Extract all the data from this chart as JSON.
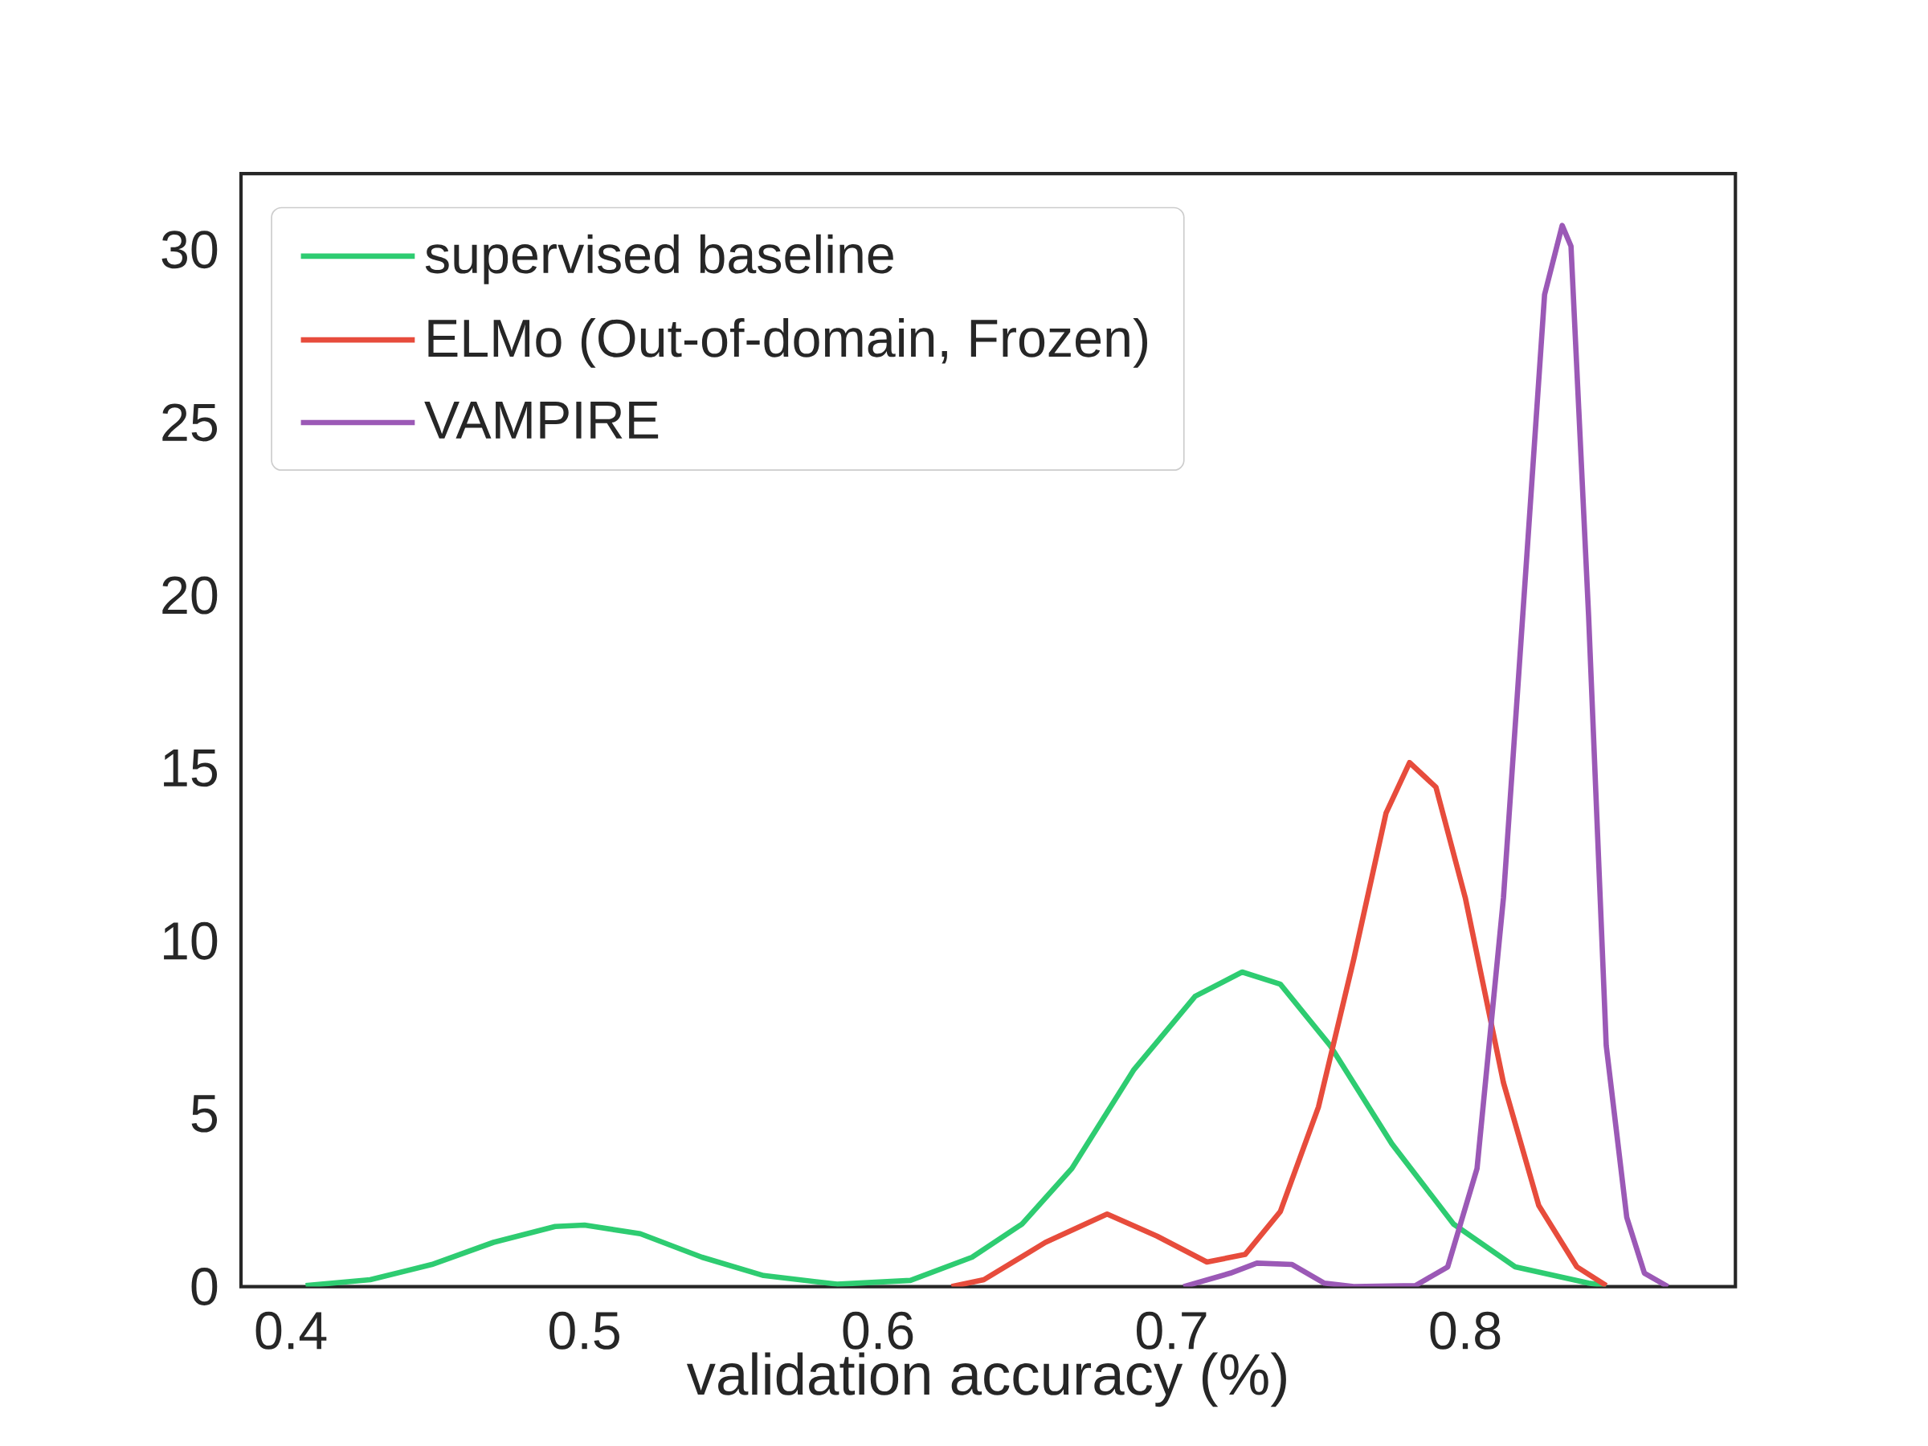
{
  "chart_data": {
    "type": "line",
    "xlabel": "validation accuracy (%)",
    "xlim": [
      0.383,
      0.892
    ],
    "ylim": [
      0,
      32.2
    ],
    "xticks": [
      0.4,
      0.5,
      0.6,
      0.7,
      0.8
    ],
    "yticks": [
      0,
      5,
      10,
      15,
      20,
      25,
      30
    ],
    "grid": false,
    "legend": "top left",
    "marker": "none",
    "line_style": "solid",
    "series": [
      {
        "name": "supervised baseline",
        "color": "#2ecc71",
        "x": [
          0.405,
          0.427,
          0.448,
          0.469,
          0.49,
          0.5,
          0.519,
          0.54,
          0.561,
          0.586,
          0.611,
          0.632,
          0.649,
          0.666,
          0.687,
          0.708,
          0.724,
          0.737,
          0.754,
          0.775,
          0.796,
          0.817,
          0.842,
          0.848
        ],
        "values": [
          0.03,
          0.2,
          0.64,
          1.28,
          1.74,
          1.78,
          1.53,
          0.85,
          0.32,
          0.07,
          0.18,
          0.85,
          1.81,
          3.42,
          6.26,
          8.4,
          9.1,
          8.75,
          6.97,
          4.13,
          1.81,
          0.57,
          0.1,
          0.03
        ]
      },
      {
        "name": "ELMo (Out-of-domain, Frozen)",
        "color": "#e74c3c",
        "x": [
          0.625,
          0.636,
          0.657,
          0.678,
          0.695,
          0.712,
          0.725,
          0.737,
          0.75,
          0.762,
          0.773,
          0.781,
          0.79,
          0.8,
          0.813,
          0.825,
          0.838,
          0.848
        ],
        "values": [
          0.0,
          0.2,
          1.28,
          2.1,
          1.46,
          0.71,
          0.93,
          2.17,
          5.2,
          9.47,
          13.7,
          15.16,
          14.45,
          11.25,
          5.9,
          2.35,
          0.57,
          0.03
        ]
      },
      {
        "name": "VAMPIRE",
        "color": "#9b59b6",
        "x": [
          0.704,
          0.72,
          0.729,
          0.741,
          0.752,
          0.762,
          0.783,
          0.794,
          0.804,
          0.813,
          0.821,
          0.827,
          0.833,
          0.836,
          0.842,
          0.848,
          0.855,
          0.861,
          0.869
        ],
        "values": [
          0.0,
          0.39,
          0.68,
          0.64,
          0.1,
          0.0,
          0.03,
          0.57,
          3.42,
          11.25,
          21.2,
          28.7,
          30.7,
          30.1,
          19.4,
          6.97,
          2.0,
          0.39,
          0.0
        ]
      }
    ]
  }
}
